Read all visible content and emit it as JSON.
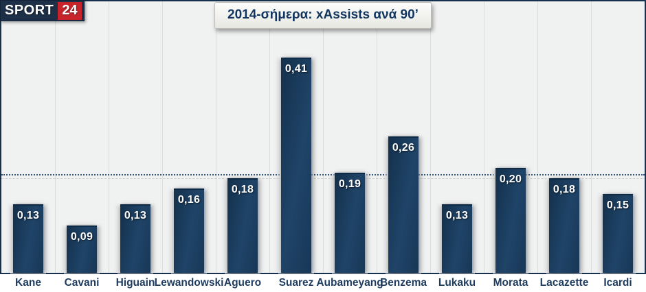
{
  "branding": {
    "logo_text_primary": "SPORT",
    "logo_text_secondary": "24",
    "logo_bg": "#1d3048",
    "logo_accent_bg": "#c7232b"
  },
  "title": {
    "text": "2014-σήμερα: xAssists ανά 90’"
  },
  "chart_data": {
    "type": "bar",
    "title": "2014-σήμερα: xAssists ανά 90’",
    "categories": [
      "Kane",
      "Cavani",
      "Higuain",
      "Lewandowski",
      "Aguero",
      "Suarez",
      "Aubameyang",
      "Benzema",
      "Lukaku",
      "Morata",
      "Lacazette",
      "Icardi"
    ],
    "values": [
      0.13,
      0.09,
      0.13,
      0.16,
      0.18,
      0.41,
      0.19,
      0.26,
      0.13,
      0.2,
      0.18,
      0.15
    ],
    "value_labels": [
      "0,13",
      "0,09",
      "0,13",
      "0,16",
      "0,18",
      "0,41",
      "0,19",
      "0,26",
      "0,13",
      "0,20",
      "0,18",
      "0,15"
    ],
    "xlabel": "",
    "ylabel": "",
    "ylim": [
      0,
      0.517
    ],
    "grid": "vertical",
    "legend": "none",
    "reference_lines": [
      {
        "name": "average-line",
        "value": 0.188,
        "color": "#33557d",
        "style": "dotted"
      },
      {
        "name": "secondary-line",
        "value": 0.18,
        "color": "#c6cacd",
        "style": "dotted"
      }
    ]
  },
  "colors": {
    "plot_background": "#f0f1f1",
    "frame_border": "#16304d",
    "gridline": "#dadcdc",
    "bar": "#1c3d5e",
    "bar_value_text": "#ffffff",
    "axis_label_text": "#1d3b5e",
    "title_text": "#12365f"
  }
}
